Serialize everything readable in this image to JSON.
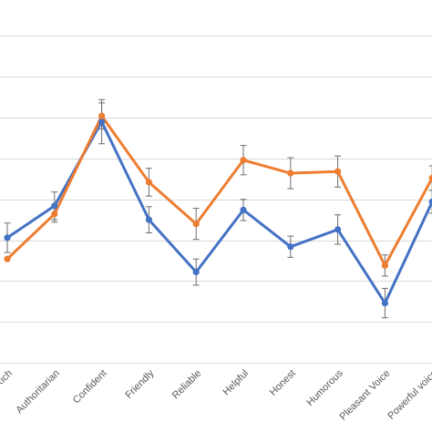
{
  "chart_data": {
    "type": "line",
    "categories": [
      "Rich",
      "Authoritarian",
      "Confident",
      "Friendly",
      "Reliable",
      "Helpful",
      "Honest",
      "Humorous",
      "Pleasant Voice",
      "Powerful voice"
    ],
    "grid": true,
    "legend": "none",
    "series": [
      {
        "color": "#4472c4",
        "values": [
          4.53,
          4.92,
          5.95,
          4.75,
          4.11,
          4.87,
          4.42,
          4.63,
          3.73,
          4.97
        ],
        "error": [
          0.18,
          0.17,
          0.27,
          0.16,
          0.16,
          0.13,
          0.13,
          0.18,
          0.18,
          0.14
        ]
      },
      {
        "color": "#ed7d31",
        "values": [
          4.27,
          4.82,
          6.02,
          5.21,
          4.7,
          5.48,
          5.32,
          5.34,
          4.19,
          5.26
        ],
        "error": [
          0.0,
          0.1,
          0.16,
          0.17,
          0.19,
          0.18,
          0.19,
          0.19,
          0.13,
          0.15
        ]
      }
    ],
    "ylim": [
      3.0,
      7.25
    ],
    "gridlines": [
      3.0,
      3.5,
      4.0,
      4.5,
      5.0,
      5.5,
      6.0,
      6.5,
      7.0
    ]
  }
}
